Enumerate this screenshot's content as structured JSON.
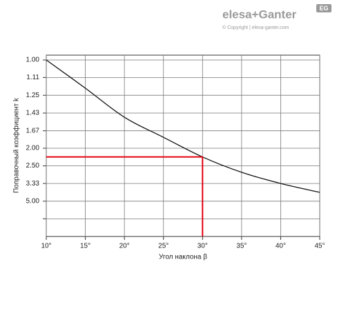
{
  "brand": {
    "name": "elesa+Ganter",
    "copyright": "© Copyright | elesa-ganter.com",
    "badge": "EG"
  },
  "chart_data": {
    "type": "line",
    "xlabel": "Угол наклона β",
    "ylabel": "Поправочный коэффициент k",
    "x": [
      10,
      15,
      20,
      25,
      30,
      35,
      40,
      45
    ],
    "series": [
      {
        "color": "#111111",
        "values": [
          1.0,
          1.19,
          1.48,
          1.78,
          2.22,
          2.75,
          3.33,
          4.0
        ]
      }
    ],
    "xlim": [
      10,
      45
    ],
    "xticks": [
      {
        "value": 10,
        "label": "10°"
      },
      {
        "value": 15,
        "label": "15°"
      },
      {
        "value": 20,
        "label": "20°"
      },
      {
        "value": 25,
        "label": "25°"
      },
      {
        "value": 30,
        "label": "30°"
      },
      {
        "value": 35,
        "label": "35°"
      },
      {
        "value": 40,
        "label": "40°"
      },
      {
        "value": 45,
        "label": "45°"
      }
    ],
    "yscale": "reciprocal",
    "ylim": [
      1,
      null
    ],
    "yticks": [
      {
        "value": 1,
        "label": "1.00"
      },
      {
        "value": 1.11,
        "label": "1.11"
      },
      {
        "value": 1.25,
        "label": "1.25"
      },
      {
        "value": 1.43,
        "label": "1.43"
      },
      {
        "value": 1.67,
        "label": "1.67"
      },
      {
        "value": 2,
        "label": "2.00"
      },
      {
        "value": 2.5,
        "label": "2.50"
      },
      {
        "value": 3.33,
        "label": "3.33"
      },
      {
        "value": 5,
        "label": "5.00"
      },
      {
        "value": 10,
        "label": null
      }
    ],
    "grid": true,
    "highlight": {
      "x": 30,
      "y": 2.22,
      "color": "#e3000f"
    }
  }
}
